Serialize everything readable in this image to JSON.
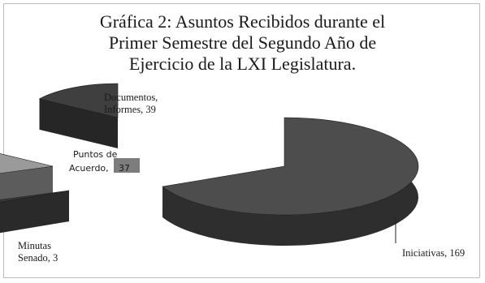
{
  "chart_data": {
    "type": "pie",
    "title_lines": [
      "Gráfica 2: Asuntos Recibidos durante el",
      "Primer Semestre del Segundo Año de",
      "Ejercicio de la LXI Legislatura."
    ],
    "slices": [
      {
        "label_lines": [
          "Iniciativas, 169"
        ],
        "value": 169
      },
      {
        "label_lines": [
          "Minutas",
          "Senado, 3"
        ],
        "value": 3
      },
      {
        "label_lines": [
          "Puntos de",
          "Acuerdo,",
          "37"
        ],
        "value": 37
      },
      {
        "label_lines": [
          "Documentos,",
          "Informes, 39"
        ],
        "value": 39
      }
    ],
    "colors": {
      "iniciativas_top": "#4d4d4d",
      "iniciativas_side": "#2e2e2e",
      "minutas_top": "#3a3a3a",
      "minutas_side": "#2a2a2a",
      "puntos_top": "#9a9a9a",
      "puntos_side": "#5c5c5c",
      "documentos_top": "#3f3f3f",
      "documentos_side": "#262626"
    },
    "exploded": true,
    "style": "3d"
  }
}
